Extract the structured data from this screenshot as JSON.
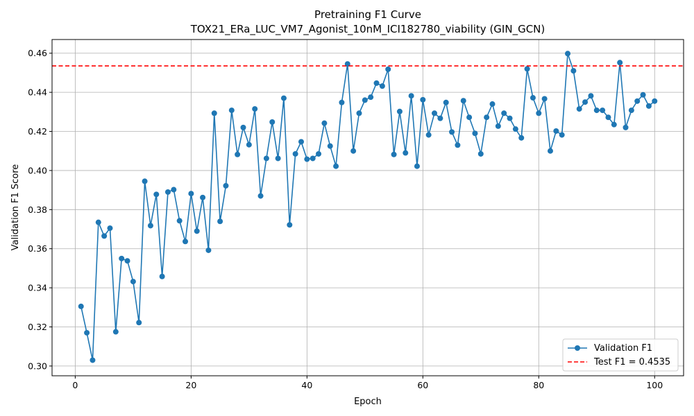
{
  "chart_data": {
    "type": "line",
    "title": "Pretraining F1 Curve",
    "subtitle": "TOX21_ERa_LUC_VM7_Agonist_10nM_ICI182780_viability (GIN_GCN)",
    "xlabel": "Epoch",
    "ylabel": "Validation F1 Score",
    "xlim": [
      -4,
      105
    ],
    "ylim": [
      0.295,
      0.467
    ],
    "xticks": [
      0,
      20,
      40,
      60,
      80,
      100
    ],
    "yticks": [
      0.3,
      0.32,
      0.34,
      0.36,
      0.38,
      0.4,
      0.42,
      0.44,
      0.46
    ],
    "grid": true,
    "legend_position": "bottom-right",
    "series": [
      {
        "name": "Validation F1",
        "color": "#1f77b4",
        "marker": "circle",
        "x": [
          1,
          2,
          3,
          4,
          5,
          6,
          7,
          8,
          9,
          10,
          11,
          12,
          13,
          14,
          15,
          16,
          17,
          18,
          19,
          20,
          21,
          22,
          23,
          24,
          25,
          26,
          27,
          28,
          29,
          30,
          31,
          32,
          33,
          34,
          35,
          36,
          37,
          38,
          39,
          40,
          41,
          42,
          43,
          44,
          45,
          46,
          47,
          48,
          49,
          50,
          51,
          52,
          53,
          54,
          55,
          56,
          57,
          58,
          59,
          60,
          61,
          62,
          63,
          64,
          65,
          66,
          67,
          68,
          69,
          70,
          71,
          72,
          73,
          74,
          75,
          76,
          77,
          78,
          79,
          80,
          81,
          82,
          83,
          84,
          85,
          86,
          87,
          88,
          89,
          90,
          91,
          92,
          93,
          94,
          95,
          96,
          97,
          98,
          99,
          100
        ],
        "y": [
          0.3305,
          0.317,
          0.303,
          0.3735,
          0.3665,
          0.3705,
          0.3175,
          0.355,
          0.3538,
          0.3432,
          0.3222,
          0.3945,
          0.3718,
          0.3878,
          0.3458,
          0.389,
          0.3902,
          0.3743,
          0.3637,
          0.3882,
          0.369,
          0.3862,
          0.3592,
          0.4293,
          0.374,
          0.3922,
          0.4308,
          0.4082,
          0.422,
          0.4132,
          0.4315,
          0.387,
          0.4062,
          0.4248,
          0.4062,
          0.437,
          0.3722,
          0.4085,
          0.4147,
          0.4058,
          0.4062,
          0.4085,
          0.4242,
          0.4125,
          0.4022,
          0.4348,
          0.4545,
          0.41,
          0.4293,
          0.436,
          0.4375,
          0.4447,
          0.4432,
          0.4518,
          0.4082,
          0.4302,
          0.409,
          0.4382,
          0.4022,
          0.4362,
          0.4182,
          0.4293,
          0.4267,
          0.4348,
          0.4197,
          0.413,
          0.4357,
          0.4272,
          0.419,
          0.4085,
          0.4272,
          0.434,
          0.4227,
          0.4293,
          0.4267,
          0.4212,
          0.4167,
          0.452,
          0.4372,
          0.4293,
          0.4367,
          0.41,
          0.4202,
          0.4182,
          0.4598,
          0.451,
          0.4315,
          0.435,
          0.4382,
          0.4308,
          0.4308,
          0.4272,
          0.4235,
          0.4552,
          0.422,
          0.4308,
          0.4355,
          0.4387,
          0.433,
          0.4355
        ]
      },
      {
        "name": "Test F1 = 0.4535",
        "color": "#ff0000",
        "style": "dashed",
        "value": 0.4535
      }
    ]
  }
}
